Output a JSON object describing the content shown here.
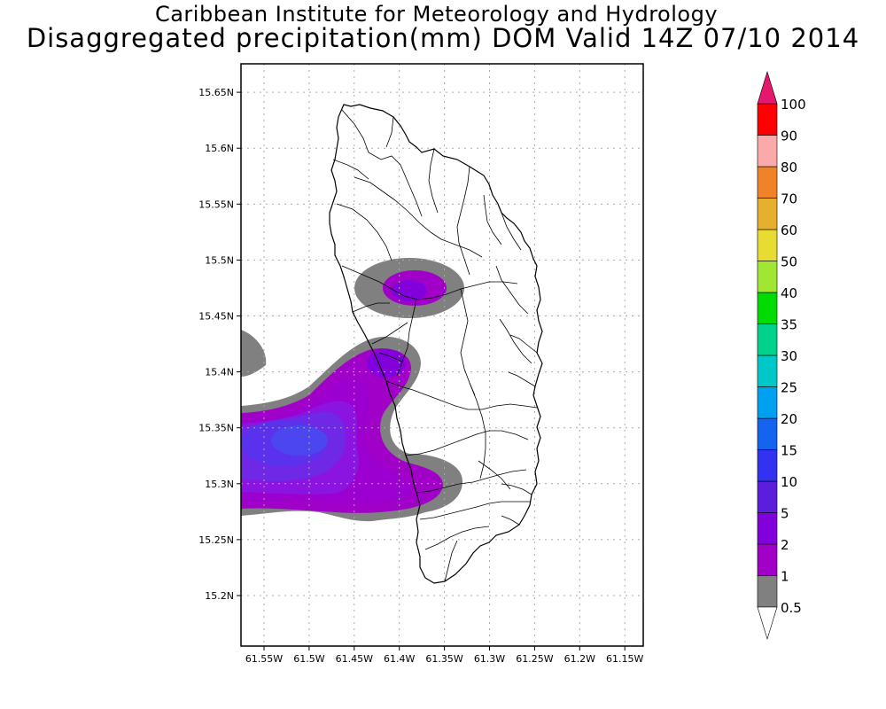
{
  "title": {
    "line1": "Caribbean Institute for Meteorology and Hydrology",
    "line2": "Disaggregated precipitation(mm) DOM Valid 14Z 07/10 2014"
  },
  "map": {
    "region": "Dominica",
    "lat_ticks": [
      "15.2N",
      "15.25N",
      "15.3N",
      "15.35N",
      "15.4N",
      "15.45N",
      "15.5N",
      "15.55N",
      "15.6N",
      "15.65N"
    ],
    "lon_ticks": [
      "61.55W",
      "61.5W",
      "61.45W",
      "61.4W",
      "61.35W",
      "61.3W",
      "61.25W",
      "61.2W",
      "61.15W"
    ],
    "grid": true,
    "land_color": "#ffffff",
    "boundary_color": "#000000"
  },
  "colorbar": {
    "labels": [
      "0.5",
      "1",
      "2",
      "5",
      "10",
      "15",
      "20",
      "25",
      "30",
      "35",
      "40",
      "50",
      "60",
      "70",
      "80",
      "90",
      "100"
    ],
    "colors": [
      "#808080",
      "#a000c8",
      "#8200dc",
      "#5a1edc",
      "#3232f0",
      "#1464f0",
      "#00a0f0",
      "#00c8c8",
      "#00d28c",
      "#00dc00",
      "#a0e632",
      "#e6dc32",
      "#e6af2d",
      "#f08228",
      "#faaaaa",
      "#ff0000",
      "#f04040"
    ],
    "top_color": "#e6186e",
    "bottom_color": "#ffffff"
  }
}
